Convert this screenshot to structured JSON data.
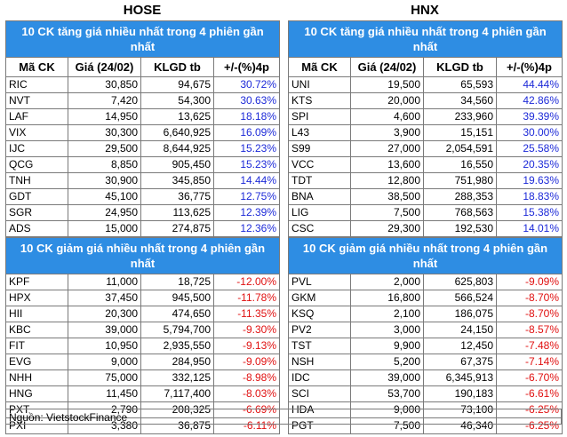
{
  "columns": [
    "Mã CK",
    "Giá (24/02)",
    "KLGD tb",
    "+/-(%)4p"
  ],
  "source": "Nguồn: VietstockFinance",
  "colors": {
    "header_bg": "#2e8de3",
    "up": "#1d2ad8",
    "down": "#e01010"
  },
  "hose": {
    "title": "HOSE",
    "gainers_title": "10 CK tăng giá nhiều nhất trong 4 phiên gần nhất",
    "losers_title": "10 CK giảm giá nhiều nhất trong 4 phiên gần nhất",
    "gainers": [
      [
        "RIC",
        "30,850",
        "94,675",
        "30.72%"
      ],
      [
        "NVT",
        "7,420",
        "54,300",
        "30.63%"
      ],
      [
        "LAF",
        "14,950",
        "13,625",
        "18.18%"
      ],
      [
        "VIX",
        "30,300",
        "6,640,925",
        "16.09%"
      ],
      [
        "IJC",
        "29,500",
        "8,644,925",
        "15.23%"
      ],
      [
        "QCG",
        "8,850",
        "905,450",
        "15.23%"
      ],
      [
        "TNH",
        "30,900",
        "345,850",
        "14.44%"
      ],
      [
        "GDT",
        "45,100",
        "36,775",
        "12.75%"
      ],
      [
        "SGR",
        "24,950",
        "113,625",
        "12.39%"
      ],
      [
        "ADS",
        "15,000",
        "274,875",
        "12.36%"
      ]
    ],
    "losers": [
      [
        "KPF",
        "11,000",
        "18,725",
        "-12.00%"
      ],
      [
        "HPX",
        "37,450",
        "945,500",
        "-11.78%"
      ],
      [
        "HII",
        "20,300",
        "474,650",
        "-11.35%"
      ],
      [
        "KBC",
        "39,000",
        "5,794,700",
        "-9.30%"
      ],
      [
        "FIT",
        "10,950",
        "2,935,550",
        "-9.13%"
      ],
      [
        "EVG",
        "9,000",
        "284,950",
        "-9.09%"
      ],
      [
        "NHH",
        "75,000",
        "332,125",
        "-8.98%"
      ],
      [
        "HNG",
        "11,450",
        "7,117,400",
        "-8.03%"
      ],
      [
        "PXT",
        "2,790",
        "208,325",
        "-6.69%"
      ],
      [
        "PXI",
        "3,380",
        "36,875",
        "-6.11%"
      ]
    ]
  },
  "hnx": {
    "title": "HNX",
    "gainers_title": "10 CK tăng giá nhiều nhất trong 4 phiên gần nhất",
    "losers_title": "10 CK giảm giá nhiều nhất trong 4 phiên gần nhất",
    "gainers": [
      [
        "UNI",
        "19,500",
        "65,593",
        "44.44%"
      ],
      [
        "KTS",
        "20,000",
        "34,560",
        "42.86%"
      ],
      [
        "SPI",
        "4,600",
        "233,960",
        "39.39%"
      ],
      [
        "L43",
        "3,900",
        "15,151",
        "30.00%"
      ],
      [
        "S99",
        "27,000",
        "2,054,591",
        "25.58%"
      ],
      [
        "VCC",
        "13,600",
        "16,550",
        "20.35%"
      ],
      [
        "TDT",
        "12,800",
        "751,980",
        "19.63%"
      ],
      [
        "BNA",
        "38,500",
        "288,353",
        "18.83%"
      ],
      [
        "LIG",
        "7,500",
        "768,563",
        "15.38%"
      ],
      [
        "CSC",
        "29,300",
        "192,530",
        "14.01%"
      ]
    ],
    "losers": [
      [
        "PVL",
        "2,000",
        "625,803",
        "-9.09%"
      ],
      [
        "GKM",
        "16,800",
        "566,524",
        "-8.70%"
      ],
      [
        "KSQ",
        "2,100",
        "186,075",
        "-8.70%"
      ],
      [
        "PV2",
        "3,000",
        "24,150",
        "-8.57%"
      ],
      [
        "TST",
        "9,900",
        "12,450",
        "-7.48%"
      ],
      [
        "NSH",
        "5,200",
        "67,375",
        "-7.14%"
      ],
      [
        "IDC",
        "39,000",
        "6,345,913",
        "-6.70%"
      ],
      [
        "SCI",
        "53,700",
        "190,183",
        "-6.61%"
      ],
      [
        "HDA",
        "9,000",
        "73,100",
        "-6.25%"
      ],
      [
        "PGT",
        "7,500",
        "46,340",
        "-6.25%"
      ]
    ]
  }
}
